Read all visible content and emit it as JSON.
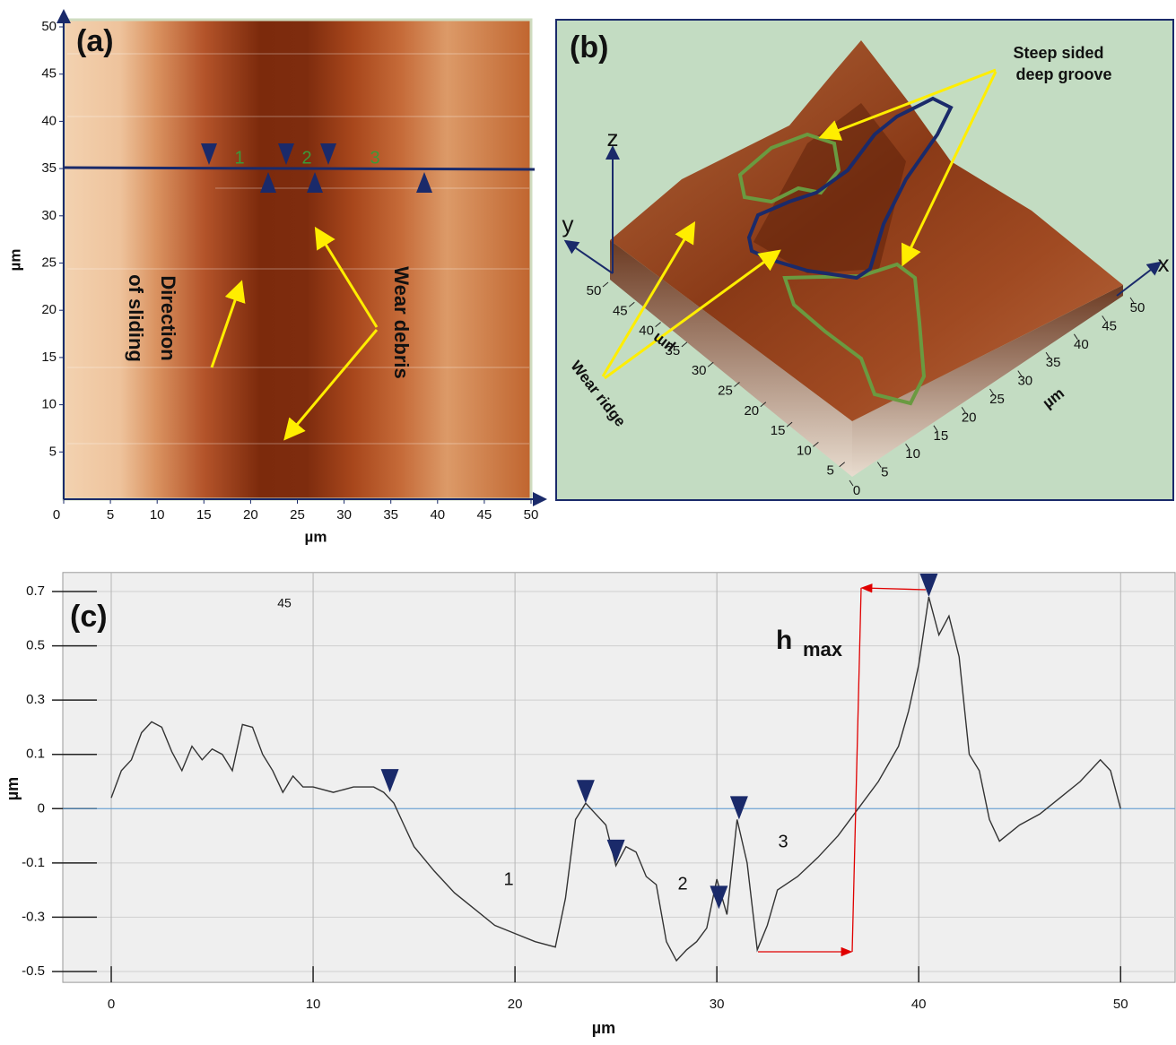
{
  "chart_data": [
    {
      "type": "afm-image",
      "panel_label": "(a)",
      "xlabel": "µm",
      "ylabel": "µm",
      "xlim": [
        0,
        50
      ],
      "ylim": [
        0,
        50
      ],
      "xticks": [
        0,
        5,
        10,
        15,
        20,
        25,
        30,
        35,
        40,
        45,
        50
      ],
      "yticks": [
        5,
        10,
        15,
        20,
        25,
        30,
        35,
        40,
        45,
        50
      ],
      "direction_label": [
        "Direction",
        "of sliding"
      ],
      "debris_label": "Wear debris",
      "segment_labels": [
        "1",
        "2",
        "3"
      ]
    },
    {
      "type": "surface3d",
      "panel_label": "(b)",
      "groove_label": [
        "Steep sided",
        "deep groove"
      ],
      "ridge_label": "Wear ridge",
      "axis_names": [
        "z",
        "y",
        "x"
      ],
      "ylabel": "µm",
      "xlabel": "µm",
      "xlim": [
        0,
        50
      ],
      "ylim": [
        0,
        50
      ],
      "xticks": [
        0,
        5,
        10,
        15,
        20,
        25,
        30,
        35,
        40,
        45,
        50
      ],
      "yticks": [
        5,
        10,
        15,
        20,
        25,
        30,
        35,
        40,
        45,
        50
      ]
    },
    {
      "type": "line",
      "panel_label": "(c)",
      "xlabel": "µm",
      "ylabel": "µm",
      "color": "#333333",
      "xlim": [
        -2.4,
        52.7
      ],
      "ylim": [
        -0.54,
        0.77
      ],
      "xticks": [
        0,
        10,
        20,
        30,
        40,
        50
      ],
      "yticks": [
        -0.5,
        -0.3,
        -0.1,
        0,
        0.1,
        0.3,
        0.5,
        0.7
      ],
      "grid": true,
      "zero_line_color": "#5b9bd5",
      "x": [
        0,
        0.5,
        1,
        1.5,
        2,
        2.5,
        3,
        3.5,
        4,
        4.5,
        5,
        5.5,
        6,
        6.5,
        7,
        7.5,
        8,
        8.5,
        9,
        9.5,
        10,
        11,
        12,
        13,
        13.5,
        14,
        14.5,
        15,
        16,
        17,
        18,
        19,
        20,
        21,
        22,
        22.5,
        23,
        23.5,
        24,
        24.5,
        25,
        25.5,
        26,
        26.5,
        27,
        27.5,
        28,
        28.5,
        29,
        29.5,
        30,
        30.5,
        31,
        31.5,
        32,
        32.5,
        33,
        34,
        35,
        36,
        37,
        38,
        39,
        39.5,
        40,
        40.5,
        41,
        41.5,
        42,
        42.5,
        43,
        43.5,
        44,
        45,
        46,
        47,
        48,
        49,
        49.5,
        50
      ],
      "values": [
        0.02,
        0.07,
        0.09,
        0.18,
        0.22,
        0.2,
        0.11,
        0.07,
        0.13,
        0.09,
        0.12,
        0.1,
        0.07,
        0.21,
        0.2,
        0.1,
        0.07,
        0.03,
        0.06,
        0.04,
        0.04,
        0.03,
        0.04,
        0.04,
        0.03,
        0.01,
        -0.03,
        -0.07,
        -0.13,
        -0.21,
        -0.27,
        -0.33,
        -0.36,
        -0.39,
        -0.41,
        -0.23,
        -0.02,
        0.01,
        -0.01,
        -0.03,
        -0.11,
        -0.07,
        -0.08,
        -0.15,
        -0.18,
        -0.39,
        -0.46,
        -0.42,
        -0.39,
        -0.34,
        -0.16,
        -0.29,
        -0.02,
        -0.1,
        -0.42,
        -0.33,
        -0.2,
        -0.15,
        -0.09,
        -0.05,
        0,
        0.05,
        0.13,
        0.26,
        0.43,
        0.68,
        0.54,
        0.61,
        0.46,
        0.1,
        0.07,
        -0.02,
        -0.06,
        -0.03,
        -0.01,
        0.02,
        0.05,
        0.09,
        0.07,
        0
      ],
      "markers": {
        "x": [
          13.8,
          23.5,
          25,
          30.1,
          31.1,
          40.5
        ],
        "values": [
          0.03,
          0.01,
          -0.1,
          -0.27,
          -0.02,
          0.68
        ]
      },
      "stray_label": "45",
      "segment_labels": [
        "1",
        "2",
        "3"
      ],
      "hmax_label": "h",
      "hmax_sub": "max"
    }
  ]
}
